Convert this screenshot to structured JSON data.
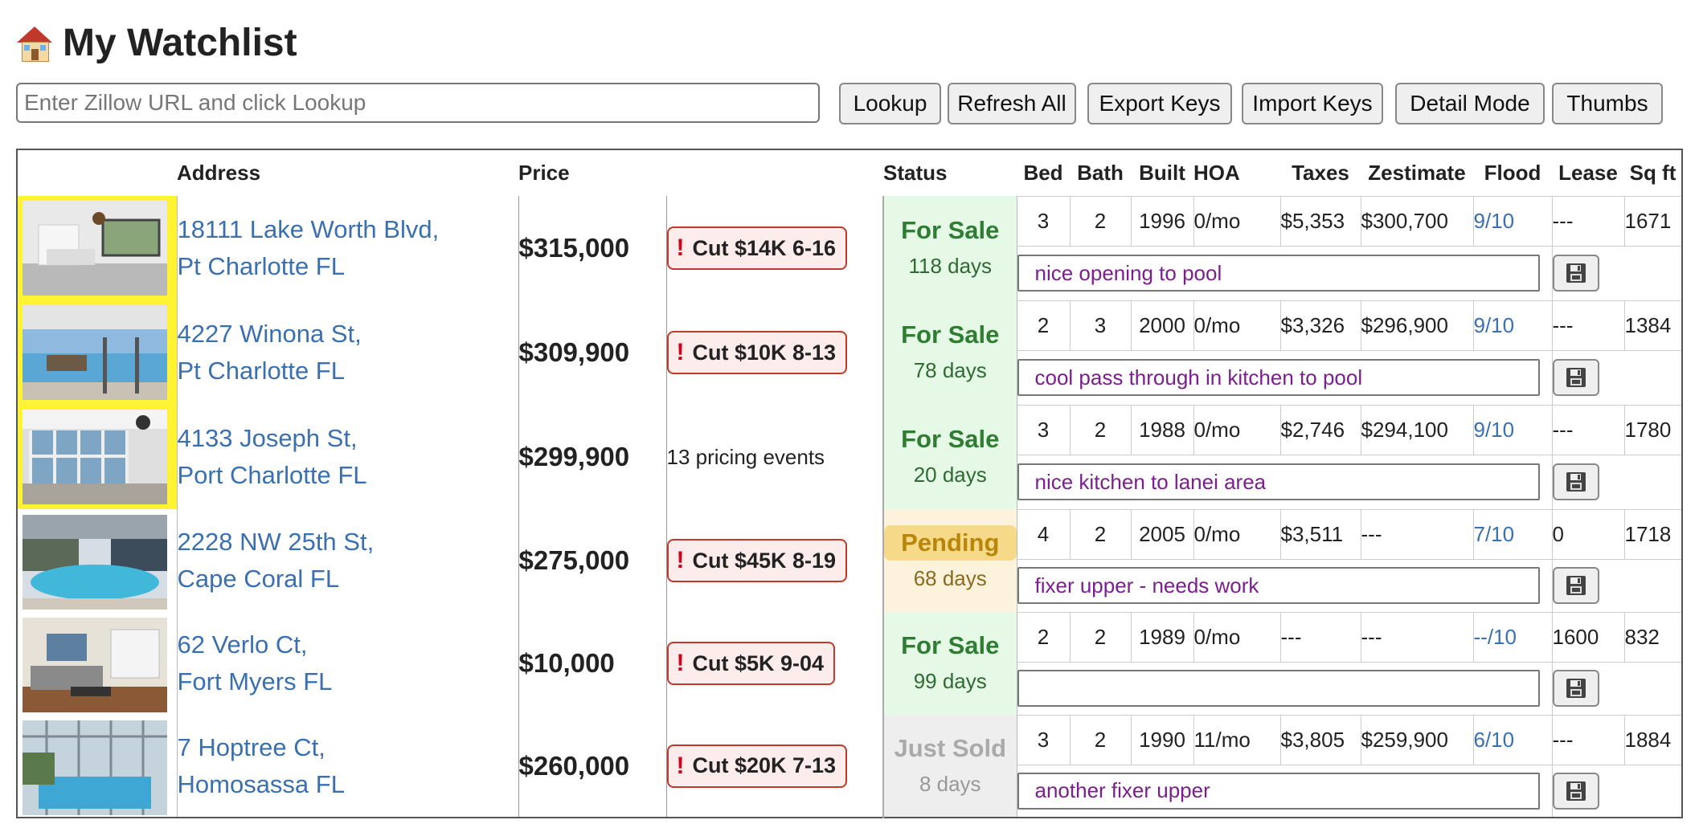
{
  "page_title": "My Watchlist",
  "title_icon": "house-icon",
  "toolbar": {
    "url_placeholder": "Enter Zillow URL and click Lookup",
    "url_value": "",
    "buttons": [
      "Lookup",
      "Refresh All",
      "Export Keys",
      "Import Keys",
      "Detail Mode",
      "Thumbs"
    ]
  },
  "table": {
    "headers": {
      "address": "Address",
      "price": "Price",
      "status": "Status",
      "bed": "Bed",
      "bath": "Bath",
      "built": "Built",
      "hoa": "HOA",
      "taxes": "Taxes",
      "zestimate": "Zestimate",
      "flood": "Flood",
      "lease": "Lease",
      "sqft": "Sq ft"
    },
    "rows": [
      {
        "addr1": "18111 Lake Worth Blvd,",
        "addr2": "Pt Charlotte FL",
        "price": "$315,000",
        "cut": "Cut $14K 6-16",
        "events": "",
        "status": "For Sale",
        "days": "118 days",
        "bed": "3",
        "bath": "2",
        "built": "1996",
        "hoa": "0/mo",
        "taxes": "$5,353",
        "zestimate": "$300,700",
        "flood": "9/10",
        "lease": "---",
        "sqft": "1671",
        "note": "nice opening to pool",
        "highlight": true,
        "status_class": "forsale",
        "thumb": "kitchen"
      },
      {
        "addr1": "4227 Winona St,",
        "addr2": "Pt Charlotte FL",
        "price": "$309,900",
        "cut": "Cut $10K 8-13",
        "events": "",
        "status": "For Sale",
        "days": "78 days",
        "bed": "2",
        "bath": "3",
        "built": "2000",
        "hoa": "0/mo",
        "taxes": "$3,326",
        "zestimate": "$296,900",
        "flood": "9/10",
        "lease": "---",
        "sqft": "1384",
        "note": "cool pass through in kitchen to pool",
        "highlight": true,
        "status_class": "forsale",
        "thumb": "patio"
      },
      {
        "addr1": "4133 Joseph St,",
        "addr2": "Port Charlotte FL",
        "price": "$299,900",
        "cut": "",
        "events": "13 pricing events",
        "status": "For Sale",
        "days": "20 days",
        "bed": "3",
        "bath": "2",
        "built": "1988",
        "hoa": "0/mo",
        "taxes": "$2,746",
        "zestimate": "$294,100",
        "flood": "9/10",
        "lease": "---",
        "sqft": "1780",
        "note": "nice kitchen to lanei area",
        "highlight": true,
        "status_class": "forsale",
        "thumb": "lanai"
      },
      {
        "addr1": "2228 NW 25th St,",
        "addr2": "Cape Coral FL",
        "price": "$275,000",
        "cut": "Cut $45K 8-19",
        "events": "",
        "status": "Pending",
        "days": "68 days",
        "bed": "4",
        "bath": "2",
        "built": "2005",
        "hoa": "0/mo",
        "taxes": "$3,511",
        "zestimate": "---",
        "flood": "7/10",
        "lease": "0",
        "sqft": "1718",
        "note": "fixer upper - needs work",
        "highlight": false,
        "status_class": "pending",
        "thumb": "pool"
      },
      {
        "addr1": "62 Verlo Ct,",
        "addr2": "Fort Myers FL",
        "price": "$10,000",
        "cut": "Cut $5K 9-04",
        "events": "",
        "status": "For Sale",
        "days": "99 days",
        "bed": "2",
        "bath": "2",
        "built": "1989",
        "hoa": "0/mo",
        "taxes": "---",
        "zestimate": "---",
        "flood": "--/10",
        "lease": "1600",
        "sqft": "832",
        "note": "",
        "highlight": false,
        "status_class": "forsale",
        "thumb": "living"
      },
      {
        "addr1": "7 Hoptree Ct,",
        "addr2": "Homosassa FL",
        "price": "$260,000",
        "cut": "Cut $20K 7-13",
        "events": "",
        "status": "Just Sold",
        "days": "8 days",
        "bed": "3",
        "bath": "2",
        "built": "1990",
        "hoa": "11/mo",
        "taxes": "$3,805",
        "zestimate": "$259,900",
        "flood": "6/10",
        "lease": "---",
        "sqft": "1884",
        "note": "another fixer upper",
        "highlight": false,
        "status_class": "sold",
        "thumb": "enclosure"
      }
    ]
  }
}
